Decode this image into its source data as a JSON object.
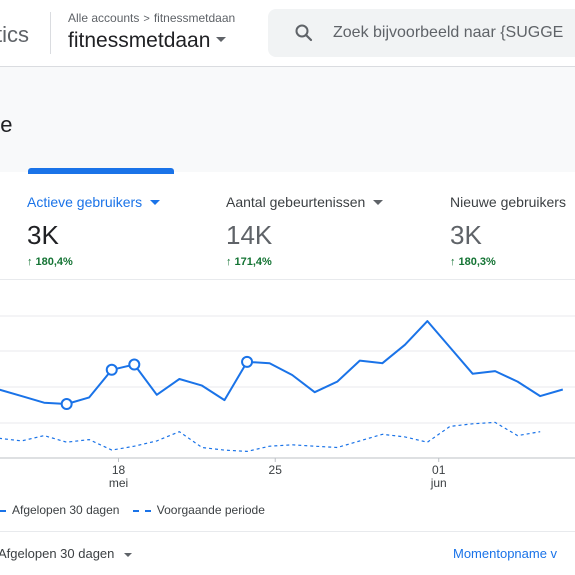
{
  "header": {
    "app_name": "tics",
    "breadcrumb": {
      "parent": "Alle accounts",
      "separator": ">",
      "current": "fitnessmetdaan"
    },
    "property": "fitnessmetdaan",
    "search": {
      "placeholder": "Zoek bijvoorbeeld naar {SUGGE"
    }
  },
  "page": {
    "title": "ne"
  },
  "metrics": [
    {
      "label": "Actieve gebruikers",
      "value": "3K",
      "delta": "180,4%",
      "active": true
    },
    {
      "label": "Aantal gebeurtenissen",
      "value": "14K",
      "delta": "171,4%",
      "active": false
    },
    {
      "label": "Nieuwe gebruikers",
      "value": "3K",
      "delta": "180,3%",
      "active": false
    }
  ],
  "chart_data": {
    "type": "line",
    "x_ticks": [
      {
        "day": "18",
        "month": "mei"
      },
      {
        "day": "25",
        "month": ""
      },
      {
        "day": "01",
        "month": "jun"
      }
    ],
    "series": [
      {
        "name": "Afgelopen 30 dagen",
        "style": "solid",
        "color": "#1a73e8",
        "values": [
          52,
          47,
          42,
          41,
          46,
          67,
          71,
          48,
          60,
          55,
          44,
          73,
          72,
          63,
          50,
          58,
          74,
          72,
          86,
          104,
          84,
          64,
          66,
          58,
          47,
          52
        ],
        "highlighted_points": [
          3,
          5,
          6,
          11
        ]
      },
      {
        "name": "Voorgaande periode",
        "style": "dashed",
        "color": "#1a73e8",
        "values": [
          15,
          13,
          17,
          12,
          14,
          6,
          9,
          13,
          20,
          8,
          6,
          5,
          9,
          10,
          9,
          8,
          13,
          18,
          16,
          12,
          24,
          26,
          27,
          17,
          20
        ]
      }
    ],
    "grid": true
  },
  "legend": {
    "current": "Afgelopen 30 dagen",
    "previous": "Voorgaande periode"
  },
  "footer": {
    "range_label": "Afgelopen 30 dagen",
    "snapshot_link": "Momentopname v"
  }
}
